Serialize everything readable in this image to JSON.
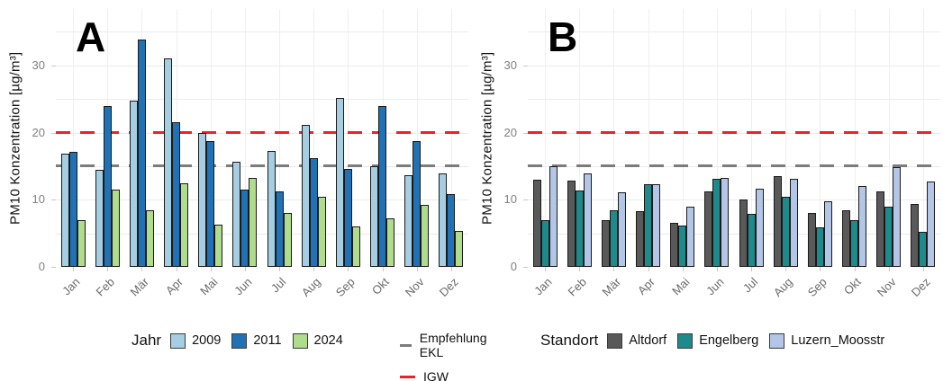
{
  "chart_data": [
    {
      "type": "bar",
      "panel_label": "A",
      "ylabel": "PM10 Konzentration [µg/m³]",
      "legend_title": "Jahr",
      "legend_position": "bottom",
      "grid": "on",
      "categories": [
        "Jan",
        "Feb",
        "Mär",
        "Apr",
        "Mai",
        "Jun",
        "Jul",
        "Aug",
        "Sep",
        "Okt",
        "Nov",
        "Dez"
      ],
      "yticks": [
        0,
        10,
        20,
        30
      ],
      "ylim": [
        0,
        38.4
      ],
      "series": [
        {
          "name": "2009",
          "color": "#A6CEE3",
          "values": [
            16.8,
            14.5,
            24.8,
            31.0,
            20.0,
            15.6,
            17.2,
            21.2,
            25.2,
            15.0,
            13.7,
            13.9
          ]
        },
        {
          "name": "2011",
          "color": "#2171B5",
          "values": [
            17.1,
            24.0,
            33.8,
            21.5,
            18.8,
            11.5,
            11.2,
            16.2,
            14.6,
            24.0,
            18.7,
            10.8
          ]
        },
        {
          "name": "2024",
          "color": "#AFDC8D",
          "values": [
            7.0,
            11.5,
            8.5,
            12.5,
            6.3,
            13.2,
            8.0,
            10.5,
            6.0,
            7.2,
            9.2,
            5.4
          ]
        }
      ],
      "ref_lines": [
        {
          "label": "Empfehlung EKL",
          "value": 15,
          "color": "#7c7c7c",
          "style": "dashed"
        },
        {
          "label": "IGW",
          "value": 20,
          "color": "#ee2128",
          "style": "dashed"
        }
      ]
    },
    {
      "type": "bar",
      "panel_label": "B",
      "ylabel": "PM10 Konzentration [µg/m³]",
      "legend_title": "Standort",
      "legend_position": "bottom",
      "grid": "on",
      "categories": [
        "Jan",
        "Feb",
        "Mär",
        "Apr",
        "Mai",
        "Jun",
        "Jul",
        "Aug",
        "Sep",
        "Okt",
        "Nov",
        "Dez"
      ],
      "yticks": [
        0,
        10,
        20,
        30
      ],
      "ylim": [
        0,
        38.4
      ],
      "series": [
        {
          "name": "Altdorf",
          "color": "#595959",
          "values": [
            13.0,
            12.9,
            6.9,
            8.3,
            6.5,
            11.3,
            10.1,
            13.5,
            8.1,
            8.4,
            11.2,
            9.4
          ]
        },
        {
          "name": "Engelberg",
          "color": "#1F8A8C",
          "values": [
            7.0,
            11.4,
            8.4,
            12.3,
            6.1,
            13.1,
            7.9,
            10.5,
            5.9,
            7.0,
            9.0,
            5.2
          ]
        },
        {
          "name": "Luzern_Moosstr",
          "color": "#B3C6E7",
          "values": [
            15.0,
            13.9,
            11.1,
            12.3,
            9.0,
            13.3,
            11.6,
            13.1,
            9.8,
            12.0,
            14.8,
            12.7
          ]
        }
      ],
      "ref_lines": [
        {
          "label": "Empfehlung EKL",
          "value": 15,
          "color": "#7c7c7c",
          "style": "dashed"
        },
        {
          "label": "IGW",
          "value": 20,
          "color": "#ee2128",
          "style": "dashed"
        }
      ]
    }
  ],
  "line_legend": {
    "items": [
      {
        "label": "Empfehlung EKL",
        "color": "#7c7c7c"
      },
      {
        "label": "IGW",
        "color": "#ee2128"
      }
    ]
  }
}
